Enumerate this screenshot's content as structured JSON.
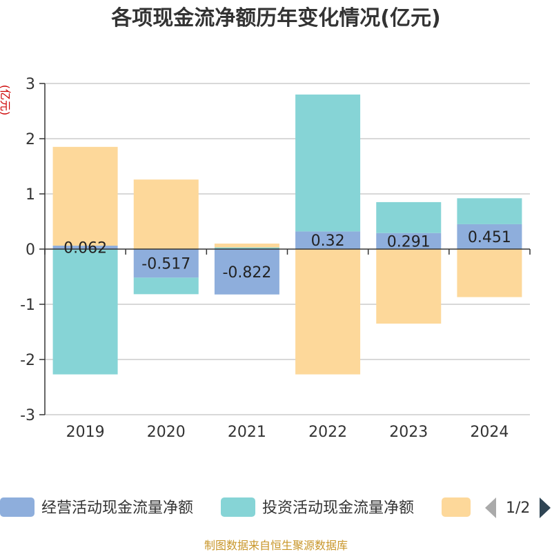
{
  "chart_data": {
    "type": "bar",
    "stacked": true,
    "title": "各项现金流净额历年变化情况(亿元)",
    "ylabel": "(亿元)",
    "categories": [
      "2019",
      "2020",
      "2021",
      "2022",
      "2023",
      "2024"
    ],
    "ylim": [
      -3,
      3
    ],
    "yticks": [
      3,
      2,
      1,
      0,
      -1,
      -2,
      -3
    ],
    "grid": true,
    "series": [
      {
        "name": "经营活动现金流量净额",
        "color": "#8eaedc",
        "values": [
          0.062,
          -0.517,
          -0.822,
          0.32,
          0.291,
          0.451
        ],
        "labels": [
          "0.062",
          "-0.517",
          "-0.822",
          "0.32",
          "0.291",
          "0.451"
        ]
      },
      {
        "name": "投资活动现金流量净额",
        "color": "#86d4d6",
        "values": [
          -2.27,
          -0.3,
          0.03,
          2.48,
          0.56,
          0.47
        ]
      },
      {
        "color": "#fdd89a",
        "values": [
          1.79,
          1.26,
          0.07,
          -2.27,
          -1.35,
          -0.87
        ]
      }
    ],
    "legend": {
      "position": "bottom",
      "page": "1/2"
    }
  },
  "footer": "制图数据来自恒生聚源数据库"
}
